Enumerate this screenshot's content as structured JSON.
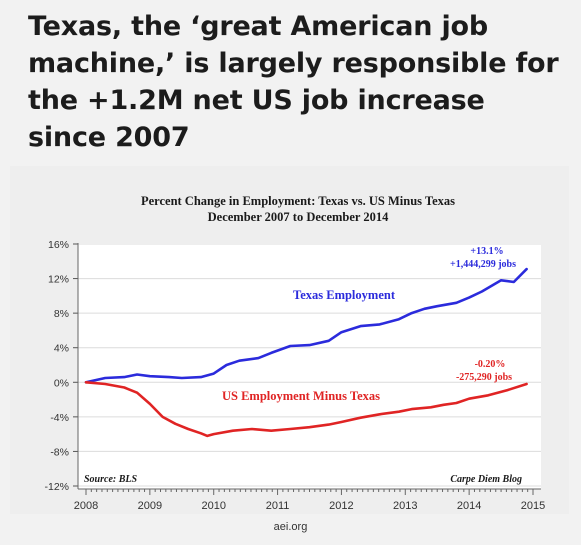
{
  "headline": "Texas, the ‘great American job machine,’ is largely responsible for the +1.2M net US job increase since 2007",
  "caption": "aei.org",
  "chart_data": {
    "type": "line",
    "title": "Percent Change in Employment: Texas vs. US Minus Texas",
    "subtitle": "December 2007 to December 2014",
    "xlabel": "",
    "ylabel": "",
    "xlim": [
      2008,
      2015
    ],
    "ylim": [
      -12,
      16
    ],
    "x_ticks": [
      "2008",
      "2009",
      "2010",
      "2011",
      "2012",
      "2013",
      "2014",
      "2015"
    ],
    "y_ticks": [
      "16%",
      "12%",
      "8%",
      "4%",
      "0%",
      "-4%",
      "-8%",
      "-12%"
    ],
    "y_tick_values": [
      16,
      12,
      8,
      4,
      0,
      -4,
      -8,
      -12
    ],
    "grid": "horizontal",
    "source": "Source: BLS",
    "credit": "Carpe Diem Blog",
    "colors": {
      "texas": "#2b2bdc",
      "us_minus_texas": "#e02424"
    },
    "series": [
      {
        "name": "Texas Employment",
        "color": "#2b2bdc",
        "x": [
          2008.0,
          2008.3,
          2008.6,
          2008.8,
          2009.0,
          2009.3,
          2009.5,
          2009.8,
          2010.0,
          2010.2,
          2010.4,
          2010.7,
          2010.9,
          2011.2,
          2011.5,
          2011.8,
          2012.0,
          2012.3,
          2012.6,
          2012.9,
          2013.1,
          2013.3,
          2013.5,
          2013.8,
          2014.0,
          2014.2,
          2014.5,
          2014.7,
          2014.9
        ],
        "y": [
          0.0,
          0.5,
          0.6,
          0.9,
          0.7,
          0.6,
          0.5,
          0.6,
          1.0,
          2.0,
          2.5,
          2.8,
          3.4,
          4.2,
          4.3,
          4.8,
          5.8,
          6.5,
          6.7,
          7.3,
          8.0,
          8.5,
          8.8,
          9.2,
          9.8,
          10.5,
          11.8,
          11.6,
          13.1
        ]
      },
      {
        "name": "US Employment Minus Texas",
        "color": "#e02424",
        "x": [
          2008.0,
          2008.3,
          2008.6,
          2008.8,
          2009.0,
          2009.2,
          2009.4,
          2009.6,
          2009.8,
          2009.9,
          2010.0,
          2010.3,
          2010.6,
          2010.9,
          2011.2,
          2011.5,
          2011.8,
          2012.0,
          2012.3,
          2012.6,
          2012.9,
          2013.1,
          2013.4,
          2013.6,
          2013.8,
          2014.0,
          2014.3,
          2014.6,
          2014.9
        ],
        "y": [
          0.0,
          -0.2,
          -0.6,
          -1.2,
          -2.5,
          -4.0,
          -4.8,
          -5.4,
          -5.9,
          -6.2,
          -6.0,
          -5.6,
          -5.4,
          -5.6,
          -5.4,
          -5.2,
          -4.9,
          -4.6,
          -4.1,
          -3.7,
          -3.4,
          -3.1,
          -2.9,
          -2.6,
          -2.4,
          -1.9,
          -1.5,
          -0.9,
          -0.2
        ]
      }
    ],
    "annotations": [
      {
        "id": "texas-pct",
        "text": "+13.1%"
      },
      {
        "id": "texas-jobs",
        "text": "+1,444,299 jobs"
      },
      {
        "id": "us-pct",
        "text": "-0.20%"
      },
      {
        "id": "us-jobs",
        "text": "-275,290 jobs"
      }
    ]
  }
}
